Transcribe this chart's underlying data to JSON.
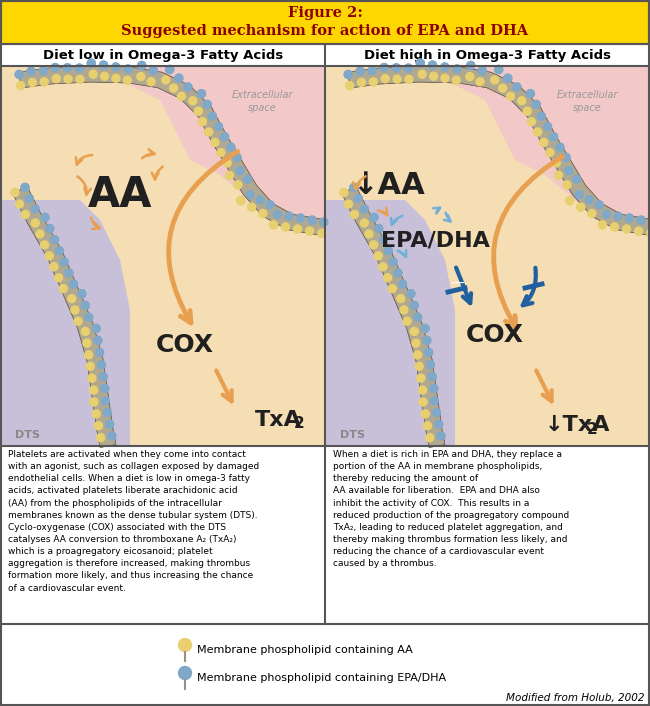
{
  "title_line1": "Figure 2:",
  "title_line2": "Suggested mechanism for action of EPA and DHA",
  "title_bg": "#FFD700",
  "title_color": "#8B0000",
  "border_color": "#555555",
  "left_header": "Diet low in Omega-3 Fatty Acids",
  "right_header": "Diet high in Omega-3 Fatty Acids",
  "left_text": "Platelets are activated when they come into contact\nwith an agonist, such as collagen exposed by damaged\nendothelial cells. When a diet is low in omega-3 fatty\nacids, activated platelets liberate arachidonic acid\n(AA) from the phospholipids of the intracellular\nmembranes known as the dense tubular system (DTS).\nCyclo-oxygenase (COX) associated with the DTS\ncatalyses AA conversion to thromboxane A₂ (TxA₂)\nwhich is a proagregatory eicosanoid; platelet\naggregation is therefore increased, making thrombus\nformation more likely, and thus increasing the chance\nof a cardiovascular event.",
  "right_text": "When a diet is rich in EPA and DHA, they replace a\nportion of the AA in membrane phospholipids,\nthereby reducing the amount of\nAA available for liberation.  EPA and DHA also\ninhibit the activity of COX.  This results in a\nreduced production of the proagregatory compound\nTxA₂, leading to reduced platelet aggregation, and\nthereby making thrombus formation less likely, and\nreducing the chance of a cardiovascular event\ncaused by a thrombus.",
  "legend_aa": "Membrane phospholipid containing AA",
  "legend_epa": "Membrane phospholipid containing EPA/DHA",
  "citation": "Modified from Holub, 2002",
  "extracell_color": "#F2C8C8",
  "intracell_color": "#F5DEB3",
  "dts_color": "#C8C0D8",
  "membrane_fill": "#B8B0A0",
  "membrane_edge": "#888070",
  "bead_aa_color": "#E8D070",
  "bead_epa_color": "#80A8C8",
  "arrow_orange": "#E8A050",
  "arrow_blue_dark": "#2060A0",
  "arrow_blue_light": "#70B0D8",
  "text_orange": "#C87820",
  "text_dark": "#202020",
  "figsize": [
    6.5,
    7.06
  ],
  "dpi": 100
}
